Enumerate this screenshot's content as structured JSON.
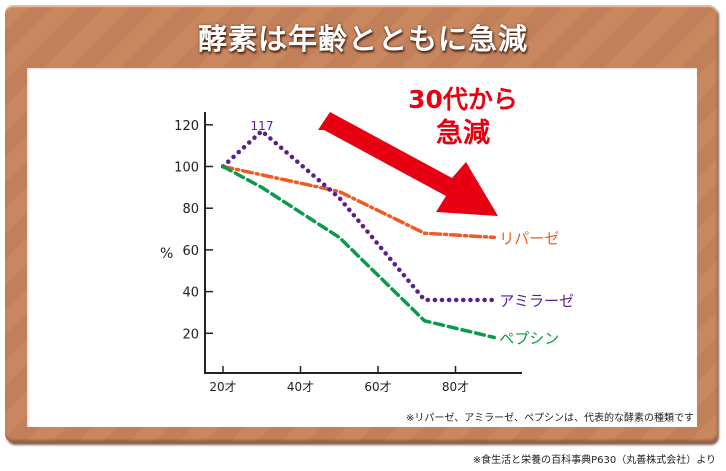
{
  "title": "酵素は年齢とともに急減",
  "chart_data": {
    "type": "line",
    "title": "酵素は年齢とともに急減",
    "xlabel": "",
    "ylabel": "%",
    "x_ticks": [
      "20才",
      "40才",
      "60才",
      "80才"
    ],
    "y_ticks": [
      20,
      40,
      60,
      80,
      100,
      120
    ],
    "ylim": [
      0,
      125
    ],
    "xlim": [
      15,
      95
    ],
    "grid": false,
    "legend_position": "inline-right",
    "series": [
      {
        "name": "リパーゼ",
        "color": "#f15a22",
        "style": "dash-dot",
        "points": [
          [
            20,
            100
          ],
          [
            50,
            88
          ],
          [
            72,
            68
          ],
          [
            90,
            66
          ]
        ]
      },
      {
        "name": "アミラーゼ",
        "color": "#5b1e8e",
        "style": "dotted",
        "points": [
          [
            20,
            100
          ],
          [
            30,
            117
          ],
          [
            50,
            85
          ],
          [
            72,
            36
          ],
          [
            90,
            36
          ]
        ]
      },
      {
        "name": "ペプシン",
        "color": "#0a9a4a",
        "style": "dashed",
        "points": [
          [
            20,
            100
          ],
          [
            30,
            90
          ],
          [
            50,
            66
          ],
          [
            72,
            26
          ],
          [
            90,
            18
          ]
        ]
      }
    ],
    "annotations": [
      {
        "text": "117",
        "x": 30,
        "y": 117,
        "color": "#5b1e8e"
      },
      {
        "text": "30代から",
        "color": "#e60012"
      },
      {
        "text": "急減",
        "color": "#e60012"
      }
    ]
  },
  "annotation": {
    "line1": "30代から",
    "line2": "急減",
    "peak_label": "117",
    "y_unit": "%"
  },
  "notes": {
    "inner": "※リパーゼ、アミラーゼ、ペプシンは、代表的な酵素の種類です",
    "source": "※食生活と栄養の百科事典P630（丸善株式会社）より"
  },
  "colors": {
    "frame": "#c4825a",
    "arrow": "#e60012",
    "lipase": "#f15a22",
    "amylase": "#5b1e8e",
    "pepsin": "#0a9a4a"
  }
}
